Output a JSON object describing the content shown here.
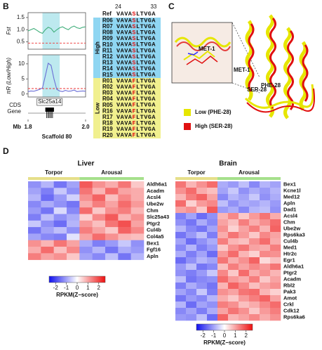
{
  "panel_b": {
    "label": "B",
    "xlim": [
      1.8,
      2.0
    ],
    "xticks": [
      1.8,
      {
        "value": 2,
        "label": "2.0"
      }
    ],
    "x_unit": "Mb",
    "xlabel": "Scaffold 80",
    "highlight": [
      1.85,
      1.91
    ],
    "x": [
      1.8,
      1.81,
      1.82,
      1.83,
      1.84,
      1.85,
      1.86,
      1.87,
      1.88,
      1.89,
      1.9,
      1.91,
      1.92,
      1.93,
      1.94,
      1.95,
      1.96,
      1.97,
      1.98,
      1.99,
      2.0
    ],
    "fst": {
      "ylabel": "Fst",
      "ylim": [
        0.2,
        1.7
      ],
      "yticks": [
        0.5,
        {
          "value": 1,
          "label": "1.0"
        },
        1.5
      ],
      "threshold": 0.45,
      "color": "#3fae7a",
      "values": [
        0.95,
        1.0,
        1.05,
        0.98,
        0.9,
        0.85,
        1.0,
        1.1,
        1.05,
        0.9,
        1.0,
        1.08,
        1.12,
        1.05,
        1.0,
        1.1,
        1.15,
        1.08,
        1.05,
        1.1,
        1.12
      ]
    },
    "pi": {
      "ylabel": "πR (Low/High)",
      "ylim": [
        -1,
        13
      ],
      "yticks": [
        0,
        5,
        10
      ],
      "threshold": 1.8,
      "color": "#6b6fd6",
      "values": [
        0.8,
        1.0,
        0.9,
        1.2,
        1.5,
        2,
        6,
        10.2,
        9.5,
        5,
        1.5,
        1.0,
        0.8,
        1.2,
        0.9,
        1.0,
        1.3,
        0.8,
        0.9,
        1.0,
        0.9
      ]
    },
    "gene": {
      "track_label": [
        "CDS",
        "Gene"
      ],
      "name": "Slc25a14",
      "start": 1.86,
      "end": 1.89
    },
    "alignment": {
      "positions": [
        24,
        33
      ],
      "ref": {
        "label": "Ref",
        "seq": "VAVASLTVGA"
      },
      "groups": [
        {
          "name": "High",
          "color": "#8fd6f2",
          "rows": [
            {
              "label": "R06",
              "seq": "VAVASLTVGA"
            },
            {
              "label": "R07",
              "seq": "VAVASLTVGA"
            },
            {
              "label": "R08",
              "seq": "VAVASLTVGA"
            },
            {
              "label": "R09",
              "seq": "VAVASLTVGA"
            },
            {
              "label": "R10",
              "seq": "VAVASLTVGA"
            },
            {
              "label": "R11",
              "seq": "VAVASLTVGA"
            },
            {
              "label": "R12",
              "seq": "VAVASLTVGA"
            },
            {
              "label": "R13",
              "seq": "VAVASLTVGA"
            },
            {
              "label": "R14",
              "seq": "VAVASLTVGA"
            },
            {
              "label": "R15",
              "seq": "VAVASLTVGA"
            }
          ]
        },
        {
          "name": "Low",
          "color": "#f1f08e",
          "rows": [
            {
              "label": "R01",
              "seq": "VAVAFLTVGA"
            },
            {
              "label": "R02",
              "seq": "VAVAFLTVGA"
            },
            {
              "label": "R03",
              "seq": "VAVAFLTVGA"
            },
            {
              "label": "R04",
              "seq": "VAVAFLTVGA"
            },
            {
              "label": "R05",
              "seq": "VAVAFLTVGA"
            },
            {
              "label": "R16",
              "seq": "VAVAFLTVGA"
            },
            {
              "label": "R17",
              "seq": "VAVAFLTVGA"
            },
            {
              "label": "R18",
              "seq": "VAVAFLTVGA"
            },
            {
              "label": "R19",
              "seq": "VAVAFLTVGA"
            },
            {
              "label": "R20",
              "seq": "VAVAFLTVGA"
            }
          ]
        }
      ]
    }
  },
  "panel_c": {
    "label": "C",
    "labels": [
      "MET-1",
      "MET-1",
      "SER-28",
      "PHE-28"
    ],
    "legend": [
      {
        "name": "Low (PHE-28)",
        "color": "#e6e600"
      },
      {
        "name": "High (SER-28)",
        "color": "#e01010"
      }
    ]
  },
  "panel_d": {
    "label": "D",
    "colorbar": {
      "title": "RPKM(Z−score)",
      "lim": [
        -2.6,
        2.6
      ],
      "ticks": [
        -2,
        -1,
        0,
        1,
        2
      ],
      "colors": [
        "#1010ee",
        "#ffffff",
        "#ee1010"
      ]
    },
    "heatmaps": [
      {
        "title": "Liver",
        "groups": [
          {
            "name": "Torpor",
            "color": "#e6df8a"
          },
          {
            "name": "Arousal",
            "color": "#a6e08c"
          }
        ],
        "rows": [
          {
            "gene": "Aldh6a1",
            "values": [
              [
                -1.2,
                -0.8,
                -1.5,
                -1.0
              ],
              [
                1.8,
                1.2,
                0.9,
                1.5,
                0.6
              ]
            ]
          },
          {
            "gene": "Acadm",
            "values": [
              [
                -1.0,
                -1.4,
                -0.6,
                -1.2
              ],
              [
                1.5,
                0.8,
                1.6,
                1.0,
                0.9
              ]
            ]
          },
          {
            "gene": "Acsl4",
            "values": [
              [
                -0.8,
                -1.6,
                -1.1,
                -0.5
              ],
              [
                1.2,
                1.7,
                0.7,
                1.3,
                0.9
              ]
            ]
          },
          {
            "gene": "Ube2w",
            "values": [
              [
                -1.3,
                -0.9,
                -1.2,
                -1.5
              ],
              [
                0.9,
                1.4,
                1.0,
                1.6,
                1.1
              ]
            ]
          },
          {
            "gene": "Chm",
            "values": [
              [
                -1.1,
                -1.5,
                -0.4,
                -1.3
              ],
              [
                1.6,
                0.6,
                1.2,
                1.4,
                0.8
              ]
            ]
          },
          {
            "gene": "Slc25a43",
            "values": [
              [
                -1.4,
                -0.7,
                -1.2,
                -0.9
              ],
              [
                0.5,
                1.3,
                1.8,
                0.8,
                1.2
              ]
            ]
          },
          {
            "gene": "Ptgr2",
            "values": [
              [
                -0.6,
                -1.2,
                -1.6,
                -0.8
              ],
              [
                1.1,
                0.7,
                1.5,
                1.9,
                1.0
              ]
            ]
          },
          {
            "gene": "Cul4b",
            "values": [
              [
                -1.5,
                -1.0,
                -0.7,
                -1.2
              ],
              [
                1.4,
                1.0,
                0.6,
                1.7,
                1.3
              ]
            ]
          },
          {
            "gene": "Col4a5",
            "values": [
              [
                -1.0,
                -1.3,
                -1.4,
                -0.3
              ],
              [
                1.0,
                1.6,
                1.2,
                0.8,
                0.7
              ]
            ]
          },
          {
            "gene": "Bex1",
            "values": [
              [
                1.2,
                0.8,
                1.5,
                1.0
              ],
              [
                -0.9,
                -1.4,
                -1.1,
                -0.6,
                -1.2
              ]
            ]
          },
          {
            "gene": "Fgf16",
            "values": [
              [
                0.9,
                1.6,
                0.7,
                1.3
              ],
              [
                -1.2,
                -0.8,
                -1.5,
                -0.9,
                -1.1
              ]
            ]
          },
          {
            "gene": "Apln",
            "values": [
              [
                1.4,
                1.0,
                1.2,
                0.6
              ],
              [
                -1.0,
                -1.3,
                -0.7,
                -1.5,
                -0.8
              ]
            ]
          }
        ]
      },
      {
        "title": "Brain",
        "groups": [
          {
            "name": "Torpor",
            "color": "#e6df8a"
          },
          {
            "name": "Arousal",
            "color": "#a6e08c"
          }
        ],
        "rows": [
          {
            "gene": "Bex1",
            "values": [
              [
                1.5,
                0.8,
                1.2,
                1.6
              ],
              [
                -0.9,
                -1.1,
                -0.7,
                -1.3,
                -0.8,
                -1.0
              ]
            ]
          },
          {
            "gene": "Kcne1l",
            "values": [
              [
                1.2,
                1.6,
                0.9,
                0.7
              ],
              [
                -1.0,
                -0.6,
                -1.2,
                -0.9,
                -1.1,
                -0.8
              ]
            ]
          },
          {
            "gene": "Med12",
            "values": [
              [
                0.8,
                1.4,
                1.7,
                1.0
              ],
              [
                -1.3,
                -0.8,
                -1.0,
                -0.6,
                -1.2,
                -0.9
              ]
            ]
          },
          {
            "gene": "Apln",
            "values": [
              [
                1.6,
                0.5,
                1.1,
                1.3
              ],
              [
                -0.7,
                -1.2,
                -0.9,
                -1.0,
                -0.8,
                -1.1
              ]
            ]
          },
          {
            "gene": "Dad1",
            "values": [
              [
                1.0,
                1.2,
                0.6,
                1.8
              ],
              [
                -1.1,
                -0.9,
                -1.3,
                -0.8,
                -0.7,
                -1.2
              ]
            ]
          },
          {
            "gene": "Acsl4",
            "values": [
              [
                -1.4,
                -1.0,
                -1.6,
                -1.2
              ],
              [
                0.8,
                1.3,
                0.6,
                1.1,
                1.5,
                0.9
              ]
            ]
          },
          {
            "gene": "Chm",
            "values": [
              [
                -1.2,
                -1.5,
                -0.9,
                -1.3
              ],
              [
                1.0,
                0.7,
                1.4,
                0.9,
                1.2,
                1.6
              ]
            ]
          },
          {
            "gene": "Ube2w",
            "values": [
              [
                -0.8,
                -1.3,
                -1.5,
                -1.0
              ],
              [
                1.2,
                0.5,
                1.0,
                1.4,
                0.8,
                1.7
              ]
            ]
          },
          {
            "gene": "Rps6ka3",
            "values": [
              [
                -1.5,
                -1.1,
                -0.7,
                -1.4
              ],
              [
                0.9,
                1.5,
                1.1,
                0.6,
                1.3,
                1.0
              ]
            ]
          },
          {
            "gene": "Cul4b",
            "values": [
              [
                -1.0,
                -1.6,
                -1.2,
                -0.9
              ],
              [
                1.4,
                0.8,
                0.7,
                1.2,
                1.6,
                0.9
              ]
            ]
          },
          {
            "gene": "Med1",
            "values": [
              [
                -1.3,
                -0.8,
                -1.4,
                -1.1
              ],
              [
                0.6,
                1.2,
                1.5,
                1.0,
                0.9,
                1.4
              ]
            ]
          },
          {
            "gene": "Htr2c",
            "values": [
              [
                -0.9,
                -1.4,
                -1.0,
                -1.6
              ],
              [
                1.1,
                1.6,
                0.8,
                0.5,
                1.3,
                1.2
              ]
            ]
          },
          {
            "gene": "Egr1",
            "values": [
              [
                -1.6,
                -1.2,
                -0.8,
                -1.0
              ],
              [
                1.5,
                0.9,
                1.2,
                1.7,
                0.4,
                0.7
              ]
            ]
          },
          {
            "gene": "Aldh6a1",
            "values": [
              [
                -1.1,
                -0.7,
                -1.5,
                -1.3
              ],
              [
                0.7,
                1.4,
                1.0,
                1.3,
                1.1,
                1.5
              ]
            ]
          },
          {
            "gene": "Ptgr2",
            "values": [
              [
                -1.2,
                -1.4,
                -1.1,
                -0.6
              ],
              [
                1.3,
                0.6,
                1.6,
                0.9,
                1.2,
                0.8
              ]
            ]
          },
          {
            "gene": "Acadm",
            "values": [
              [
                -0.7,
                -1.5,
                -1.3,
                -1.2
              ],
              [
                1.6,
                1.1,
                0.9,
                1.4,
                0.6,
                1.0
              ]
            ]
          },
          {
            "gene": "Rbl2",
            "values": [
              [
                -1.4,
                -0.9,
                -1.2,
                -1.5
              ],
              [
                0.8,
                1.7,
                1.3,
                0.7,
                1.0,
                1.2
              ]
            ]
          },
          {
            "gene": "Pak3",
            "values": [
              [
                -1.0,
                -1.3,
                -0.6,
                -1.4
              ],
              [
                1.2,
                1.0,
                1.5,
                1.6,
                0.8,
                0.5
              ]
            ]
          },
          {
            "gene": "Amot",
            "values": [
              [
                -1.5,
                -1.1,
                -1.3,
                -0.8
              ],
              [
                0.9,
                0.6,
                1.1,
                1.4,
                1.7,
                1.0
              ]
            ]
          },
          {
            "gene": "Crkl",
            "values": [
              [
                -0.8,
                -1.6,
                -1.0,
                -1.2
              ],
              [
                1.4,
                1.2,
                0.7,
                0.9,
                1.3,
                1.6
              ]
            ]
          },
          {
            "gene": "Cdk12",
            "values": [
              [
                -1.3,
                -1.0,
                -1.4,
                -0.9
              ],
              [
                1.0,
                1.5,
                1.2,
                0.6,
                1.1,
                1.4
              ]
            ]
          },
          {
            "gene": "Rps6ka6",
            "values": [
              [
                -1.1,
                -1.2,
                -0.7,
                -1.6
              ],
              [
                1.7,
                0.8,
                1.0,
                1.3,
                0.9,
                1.2
              ]
            ]
          }
        ]
      }
    ]
  }
}
